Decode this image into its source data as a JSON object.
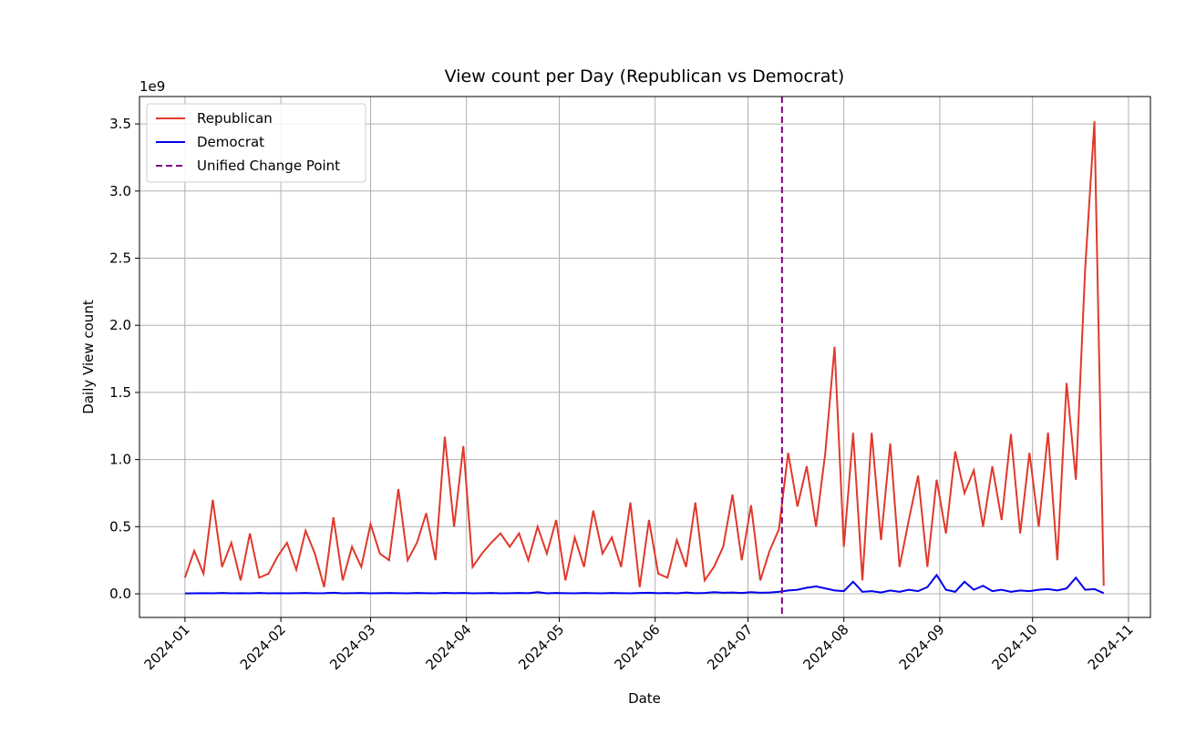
{
  "chart_data": {
    "type": "line",
    "title": "View count per Day (Republican vs Democrat)",
    "xlabel": "Date",
    "ylabel": "Daily View count",
    "y_offset_label": "1e9",
    "x": [
      0,
      3,
      6,
      9,
      12,
      15,
      18,
      21,
      24,
      27,
      30,
      33,
      36,
      39,
      42,
      45,
      48,
      51,
      54,
      57,
      60,
      63,
      66,
      69,
      72,
      75,
      78,
      81,
      84,
      87,
      90,
      93,
      96,
      99,
      102,
      105,
      108,
      111,
      114,
      117,
      120,
      123,
      126,
      129,
      132,
      135,
      138,
      141,
      144,
      147,
      150,
      153,
      156,
      159,
      162,
      165,
      168,
      171,
      174,
      177,
      180,
      183,
      186,
      189,
      192,
      195,
      198,
      201,
      204,
      207,
      210,
      213,
      216,
      219,
      222,
      225,
      228,
      231,
      234,
      237,
      240,
      243,
      246,
      249,
      252,
      255,
      258,
      261,
      264,
      267,
      270,
      273,
      276,
      279,
      282,
      285,
      288,
      291,
      294,
      297
    ],
    "series": [
      {
        "name": "Republican",
        "color": "#e0392b",
        "values": [
          0.12,
          0.32,
          0.15,
          0.7,
          0.2,
          0.38,
          0.1,
          0.45,
          0.12,
          0.15,
          0.28,
          0.38,
          0.18,
          0.47,
          0.3,
          0.05,
          0.57,
          0.1,
          0.35,
          0.2,
          0.52,
          0.3,
          0.25,
          0.78,
          0.25,
          0.38,
          0.6,
          0.25,
          1.17,
          0.5,
          1.1,
          0.2,
          0.3,
          0.38,
          0.45,
          0.35,
          0.45,
          0.25,
          0.5,
          0.3,
          0.55,
          0.1,
          0.42,
          0.2,
          0.62,
          0.3,
          0.42,
          0.2,
          0.68,
          0.05,
          0.55,
          0.15,
          0.12,
          0.4,
          0.2,
          0.68,
          0.1,
          0.2,
          0.35,
          0.74,
          0.25,
          0.66,
          0.1,
          0.32,
          0.48,
          1.05,
          0.65,
          0.95,
          0.5,
          1.05,
          1.84,
          0.35,
          1.2,
          0.1,
          1.2,
          0.4,
          1.12,
          0.2,
          0.55,
          0.88,
          0.2,
          0.85,
          0.45,
          1.06,
          0.75,
          0.92,
          0.5,
          0.95,
          0.55,
          1.19,
          0.45,
          1.05,
          0.5,
          1.2,
          0.25,
          1.57,
          0.85,
          2.42,
          3.52,
          0.06
        ]
      },
      {
        "name": "Democrat",
        "color": "#0000ee",
        "values": [
          0.003,
          0.004,
          0.005,
          0.004,
          0.006,
          0.004,
          0.005,
          0.004,
          0.006,
          0.004,
          0.005,
          0.004,
          0.005,
          0.006,
          0.004,
          0.005,
          0.008,
          0.004,
          0.005,
          0.006,
          0.004,
          0.005,
          0.006,
          0.005,
          0.004,
          0.006,
          0.005,
          0.004,
          0.007,
          0.005,
          0.006,
          0.004,
          0.005,
          0.006,
          0.004,
          0.005,
          0.006,
          0.005,
          0.012,
          0.004,
          0.006,
          0.005,
          0.004,
          0.006,
          0.005,
          0.004,
          0.006,
          0.005,
          0.004,
          0.006,
          0.008,
          0.005,
          0.006,
          0.004,
          0.01,
          0.005,
          0.006,
          0.012,
          0.008,
          0.01,
          0.006,
          0.012,
          0.008,
          0.01,
          0.015,
          0.025,
          0.03,
          0.045,
          0.055,
          0.04,
          0.025,
          0.02,
          0.09,
          0.015,
          0.02,
          0.01,
          0.025,
          0.015,
          0.03,
          0.02,
          0.05,
          0.14,
          0.03,
          0.015,
          0.09,
          0.03,
          0.06,
          0.02,
          0.03,
          0.015,
          0.025,
          0.02,
          0.03,
          0.035,
          0.025,
          0.04,
          0.12,
          0.03,
          0.035,
          0.005
        ]
      }
    ],
    "vline": {
      "name": "Unified Change Point",
      "x": 193,
      "color": "#800080"
    },
    "xlim": [
      -14.7,
      312.1
    ],
    "xticks": [
      {
        "value": 0,
        "label": "2024-01"
      },
      {
        "value": 31,
        "label": "2024-02"
      },
      {
        "value": 60,
        "label": "2024-03"
      },
      {
        "value": 91,
        "label": "2024-04"
      },
      {
        "value": 121,
        "label": "2024-05"
      },
      {
        "value": 152,
        "label": "2024-06"
      },
      {
        "value": 182,
        "label": "2024-07"
      },
      {
        "value": 213,
        "label": "2024-08"
      },
      {
        "value": 244,
        "label": "2024-09"
      },
      {
        "value": 274,
        "label": "2024-10"
      },
      {
        "value": 305,
        "label": "2024-11"
      }
    ],
    "ylim": [
      -0.176,
      3.704
    ],
    "yticks": [
      {
        "value": 0,
        "label": "0.0"
      },
      0.5,
      {
        "value": 1,
        "label": "1.0"
      },
      1.5,
      {
        "value": 2,
        "label": "2.0"
      },
      2.5,
      {
        "value": 3,
        "label": "3.0"
      },
      3.5
    ],
    "grid": true,
    "legend": "upper left"
  }
}
